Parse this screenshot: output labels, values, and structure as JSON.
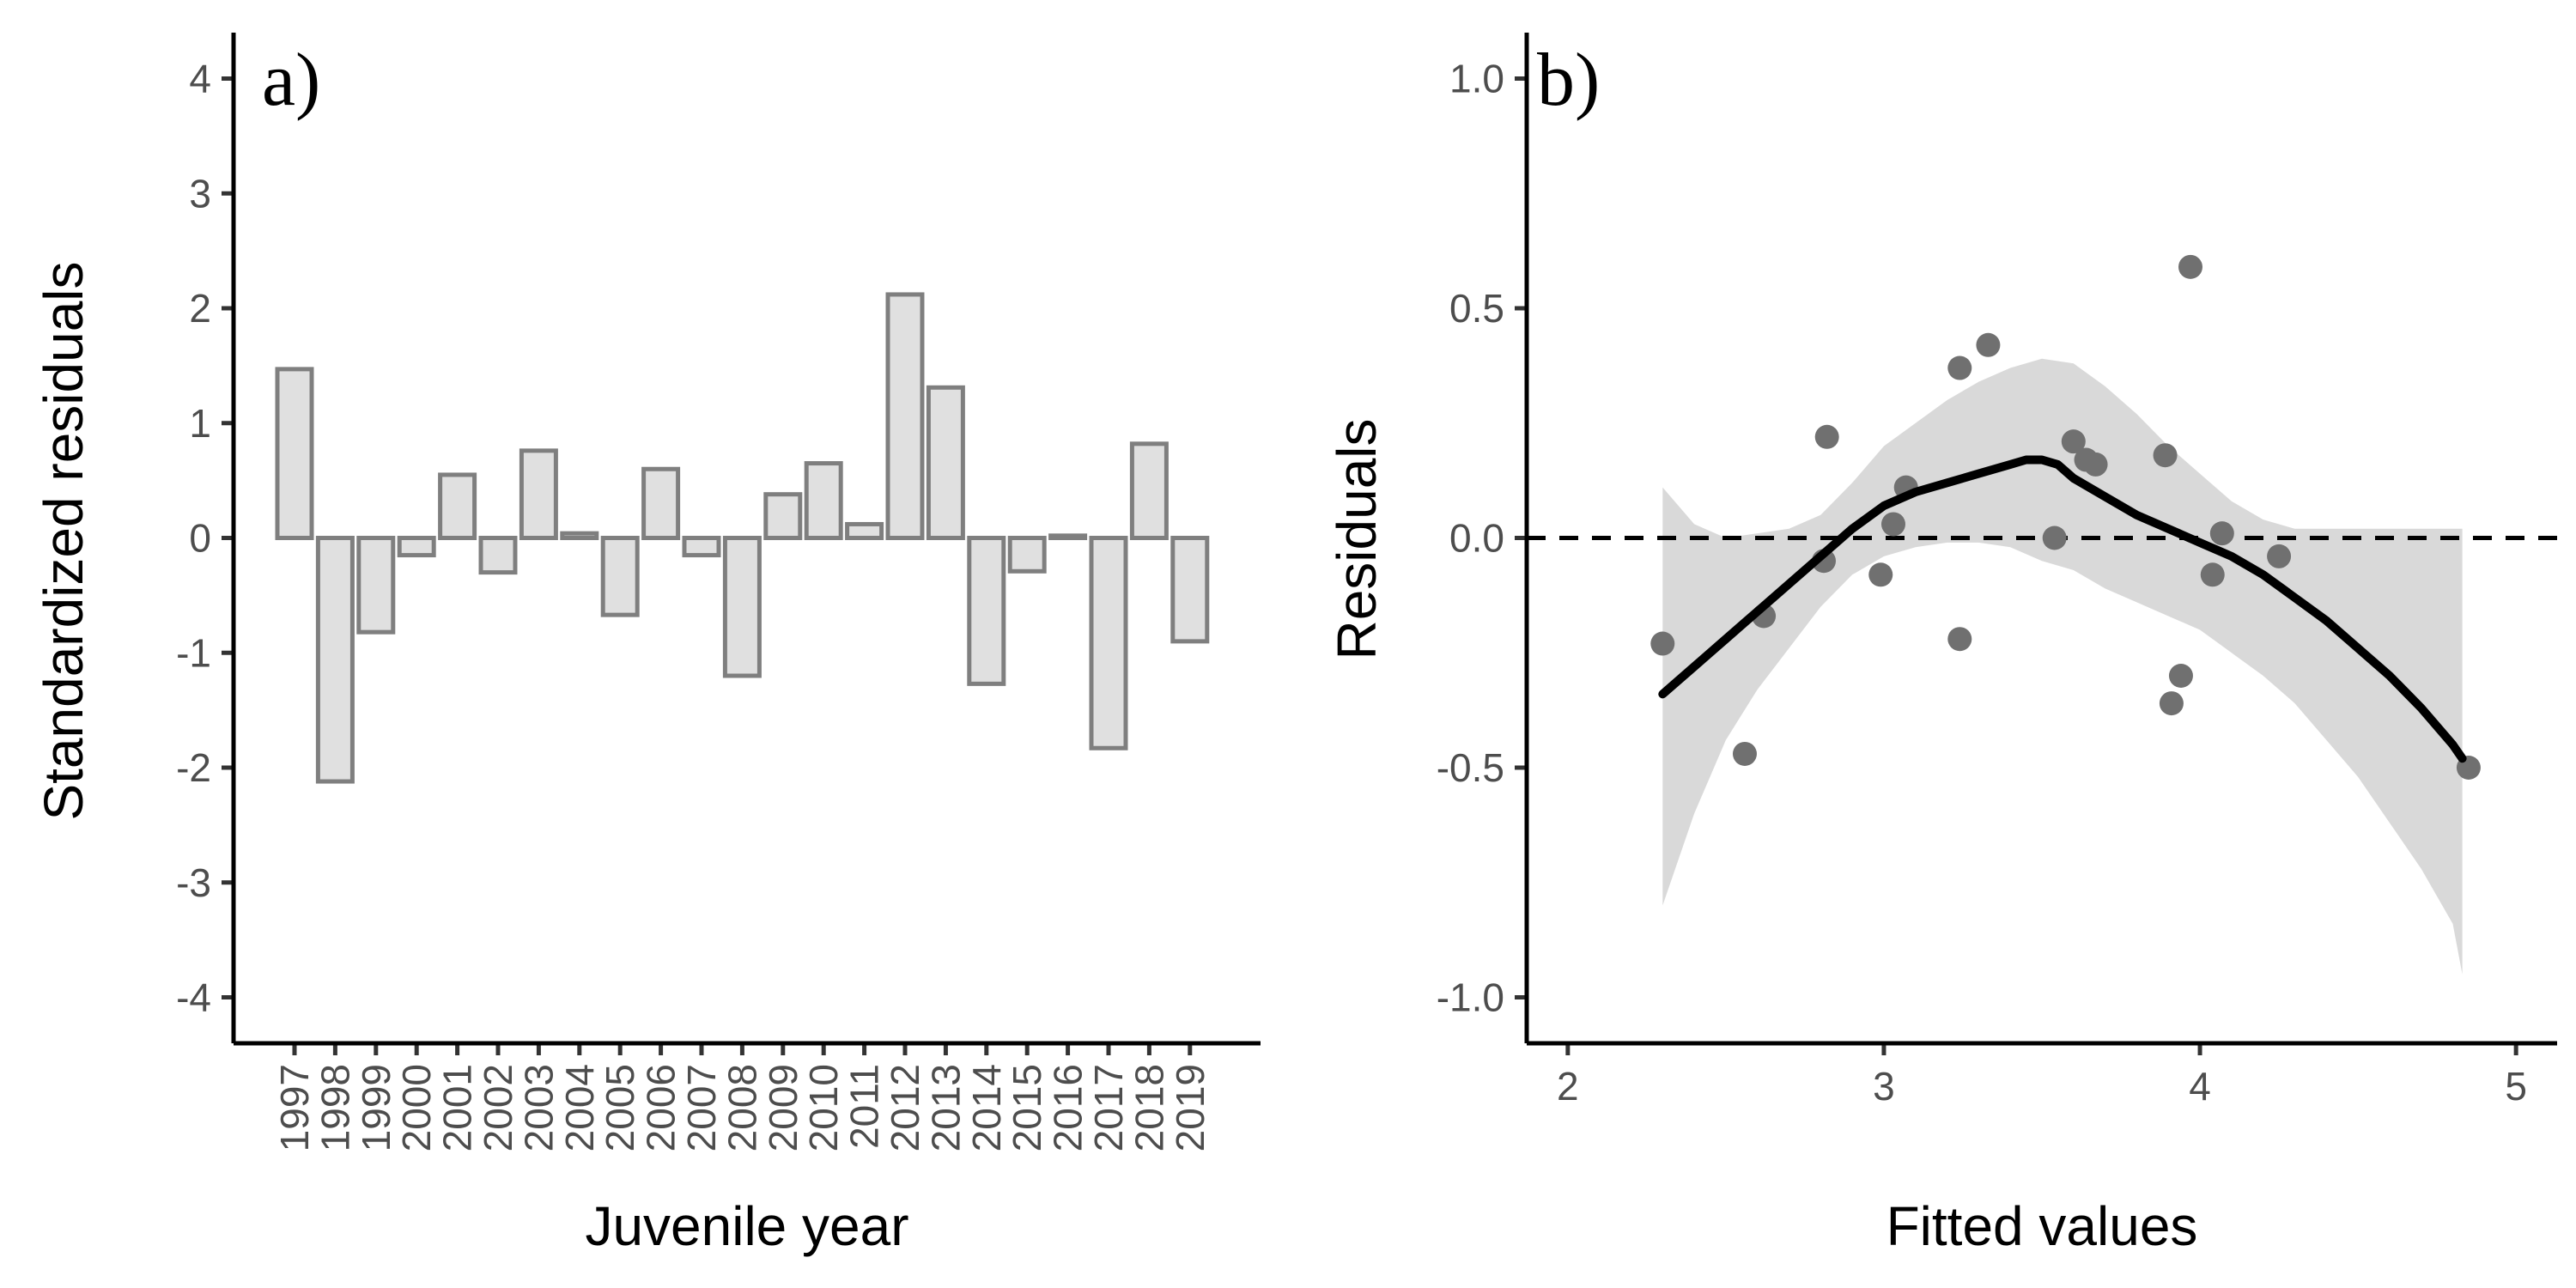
{
  "chart_data": [
    {
      "type": "bar",
      "panel_label": "a)",
      "xlabel": "Juvenile year",
      "ylabel": "Standardized residuals",
      "ylim": [
        -4.4,
        4.4
      ],
      "yticks": [
        -4,
        -3,
        -2,
        -1,
        0,
        1,
        2,
        3,
        4
      ],
      "ytick_labels": [
        "-4",
        "-3",
        "-2",
        "-1",
        "0",
        "1",
        "2",
        "3",
        "4"
      ],
      "categories": [
        "1997",
        "1998",
        "1999",
        "2000",
        "2001",
        "2002",
        "2003",
        "2004",
        "2005",
        "2006",
        "2007",
        "2008",
        "2009",
        "2010",
        "2011",
        "2012",
        "2013",
        "2014",
        "2015",
        "2016",
        "2017",
        "2018",
        "2019"
      ],
      "values": [
        1.47,
        -2.12,
        -0.82,
        -0.15,
        0.55,
        -0.3,
        0.76,
        0.04,
        -0.67,
        0.6,
        -0.15,
        -1.2,
        0.38,
        0.65,
        0.12,
        2.12,
        1.31,
        -1.27,
        -0.29,
        0.02,
        -1.83,
        0.82,
        -0.9
      ],
      "bar_fill": "#e0e0e0",
      "bar_stroke": "#7f7f7f",
      "grid": false
    },
    {
      "type": "scatter",
      "panel_label": "b)",
      "xlabel": "Fitted values",
      "ylabel": "Residuals",
      "xlim": [
        1.87,
        5.13
      ],
      "ylim": [
        -1.1,
        1.1
      ],
      "xticks": [
        2,
        3,
        4,
        5
      ],
      "xtick_labels": [
        "2",
        "3",
        "4",
        "5"
      ],
      "yticks": [
        -1.0,
        -0.5,
        0.0,
        0.5,
        1.0
      ],
      "ytick_labels": [
        "-1.0",
        "-0.5",
        "0.0",
        "0.5",
        "1.0"
      ],
      "points": [
        {
          "x": 2.3,
          "y": -0.23
        },
        {
          "x": 2.56,
          "y": -0.47
        },
        {
          "x": 2.62,
          "y": -0.17
        },
        {
          "x": 2.81,
          "y": -0.05
        },
        {
          "x": 2.82,
          "y": 0.22
        },
        {
          "x": 2.99,
          "y": -0.08
        },
        {
          "x": 3.03,
          "y": 0.03
        },
        {
          "x": 3.07,
          "y": 0.11
        },
        {
          "x": 3.24,
          "y": 0.37
        },
        {
          "x": 3.24,
          "y": -0.22
        },
        {
          "x": 3.33,
          "y": 0.42
        },
        {
          "x": 3.54,
          "y": 0.0
        },
        {
          "x": 3.6,
          "y": 0.21
        },
        {
          "x": 3.64,
          "y": 0.17
        },
        {
          "x": 3.67,
          "y": 0.16
        },
        {
          "x": 3.89,
          "y": 0.18
        },
        {
          "x": 3.91,
          "y": -0.36
        },
        {
          "x": 3.94,
          "y": -0.3
        },
        {
          "x": 3.97,
          "y": 0.59
        },
        {
          "x": 4.04,
          "y": -0.08
        },
        {
          "x": 4.07,
          "y": 0.01
        },
        {
          "x": 4.25,
          "y": -0.04
        },
        {
          "x": 4.85,
          "y": -0.5
        }
      ],
      "smooth_line": {
        "x": [
          2.3,
          2.4,
          2.5,
          2.6,
          2.7,
          2.8,
          2.9,
          3.0,
          3.1,
          3.2,
          3.3,
          3.4,
          3.45,
          3.5,
          3.55,
          3.6,
          3.7,
          3.8,
          3.9,
          4.0,
          4.1,
          4.2,
          4.3,
          4.4,
          4.5,
          4.6,
          4.7,
          4.8,
          4.83
        ],
        "y": [
          -0.34,
          -0.28,
          -0.22,
          -0.16,
          -0.1,
          -0.04,
          0.02,
          0.07,
          0.1,
          0.12,
          0.14,
          0.16,
          0.17,
          0.17,
          0.16,
          0.13,
          0.09,
          0.05,
          0.02,
          -0.01,
          -0.04,
          -0.08,
          -0.13,
          -0.18,
          -0.24,
          -0.3,
          -0.37,
          -0.45,
          -0.48
        ]
      },
      "confidence_band": {
        "x": [
          2.3,
          2.4,
          2.5,
          2.6,
          2.7,
          2.8,
          2.9,
          3.0,
          3.1,
          3.2,
          3.3,
          3.4,
          3.5,
          3.6,
          3.7,
          3.8,
          3.9,
          4.0,
          4.1,
          4.2,
          4.3,
          4.4,
          4.5,
          4.6,
          4.7,
          4.8,
          4.83
        ],
        "upper": [
          0.11,
          0.03,
          0.0,
          0.01,
          0.02,
          0.05,
          0.12,
          0.2,
          0.25,
          0.3,
          0.34,
          0.37,
          0.39,
          0.38,
          0.33,
          0.27,
          0.2,
          0.14,
          0.08,
          0.04,
          0.02,
          0.02,
          0.02,
          0.02,
          0.02,
          0.02,
          0.02
        ],
        "lower": [
          -0.8,
          -0.6,
          -0.44,
          -0.33,
          -0.24,
          -0.15,
          -0.08,
          -0.04,
          -0.02,
          -0.01,
          -0.01,
          -0.02,
          -0.05,
          -0.07,
          -0.11,
          -0.14,
          -0.17,
          -0.2,
          -0.25,
          -0.3,
          -0.36,
          -0.44,
          -0.52,
          -0.62,
          -0.72,
          -0.84,
          -0.95
        ]
      },
      "reference_line_y": 0,
      "point_color": "#707070",
      "line_color": "#000000",
      "band_color": "#d9d9d9",
      "grid": false
    }
  ]
}
